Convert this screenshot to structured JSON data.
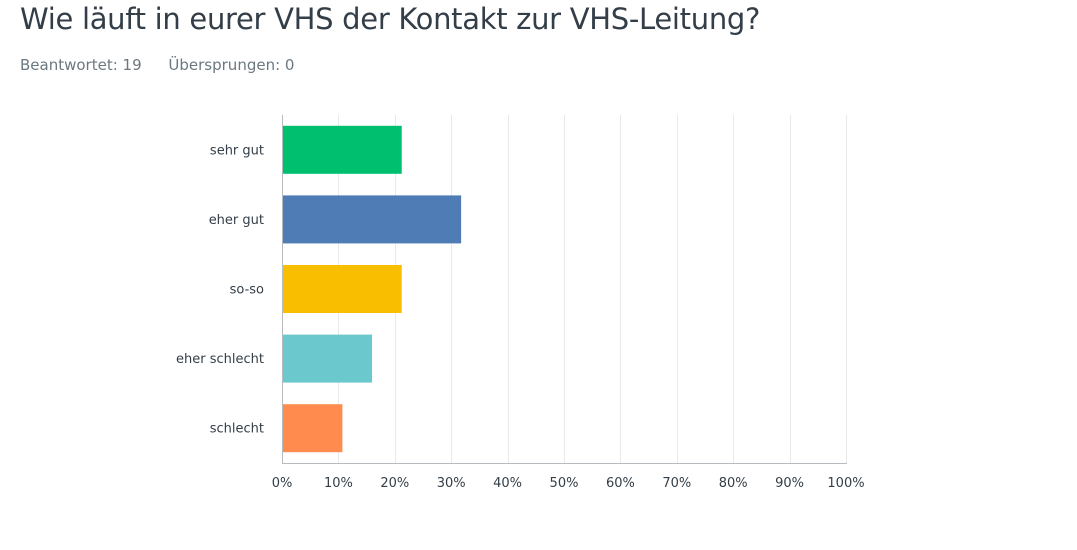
{
  "question": {
    "title": "Wie läuft in eurer VHS der Kontakt zur VHS-Leitung?",
    "answered_label": "Beantwortet: 19",
    "skipped_label": "Übersprungen: 0"
  },
  "chart_data": {
    "type": "bar",
    "orientation": "horizontal",
    "categories": [
      "sehr gut",
      "eher gut",
      "so-so",
      "eher schlecht",
      "schlecht"
    ],
    "values": [
      21.05,
      31.58,
      21.05,
      15.79,
      10.53
    ],
    "unit": "%",
    "colors": [
      "#00bf6f",
      "#507cb6",
      "#f9be00",
      "#6bc8cd",
      "#ff8b4f"
    ],
    "xlim": [
      0,
      100
    ],
    "ticks": [
      "0%",
      "10%",
      "20%",
      "30%",
      "40%",
      "50%",
      "60%",
      "70%",
      "80%",
      "90%",
      "100%"
    ],
    "grid": true,
    "legend": "none"
  }
}
